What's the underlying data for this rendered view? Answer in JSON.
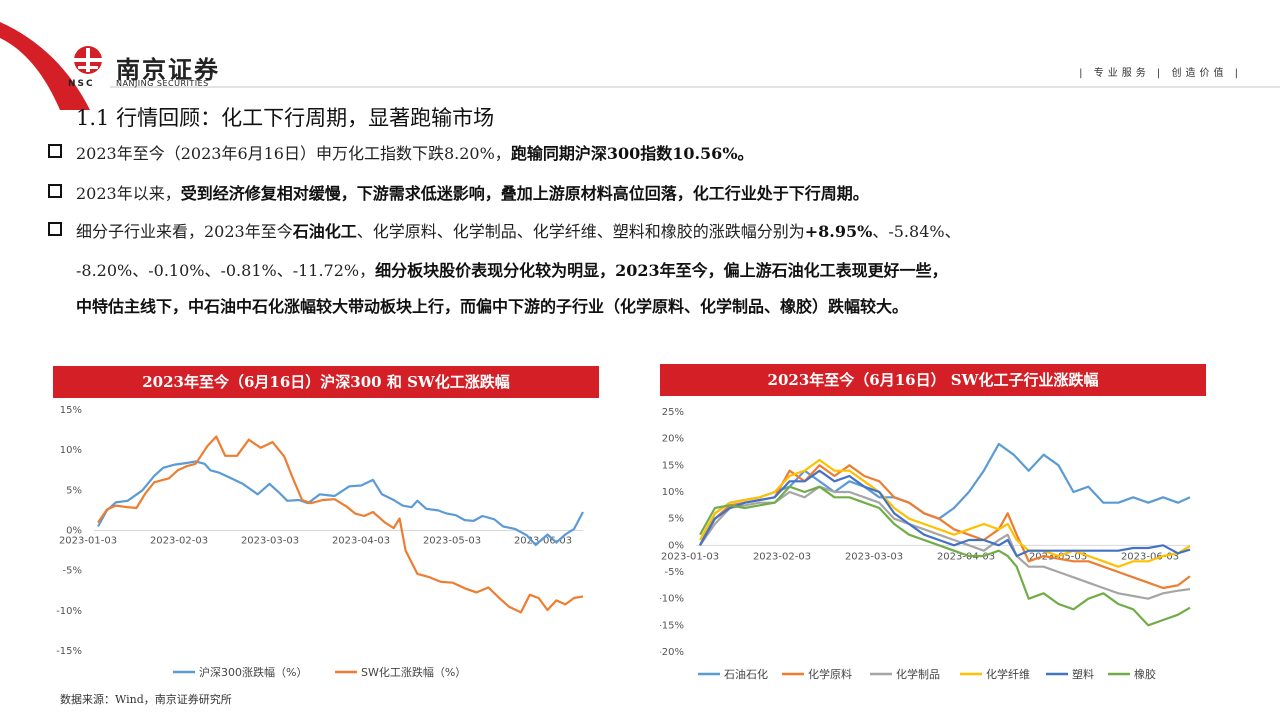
{
  "brand": {
    "name": "南京证券",
    "abbr": "NSC",
    "name_en": "NANJING SECURITIES"
  },
  "slogan": "| 专业服务 | 创造价值 |",
  "colors": {
    "accent": "#d41f26",
    "blue": "#5b9bd5",
    "orange": "#ed7d31",
    "gray": "#a5a5a5",
    "yellow": "#ffc000",
    "darkblue": "#4472c4",
    "green": "#70ad47"
  },
  "slide_title": "1.1 行情回顾：化工下行周期，显著跑输市场",
  "bullets": {
    "b1": {
      "p1": "2023年至今（2023年6月16日）申万化工指数下跌8.20%，",
      "p2": "跑输同期沪深300指数10.56%。"
    },
    "b2": {
      "p1": "2023年以来，",
      "p2": "受到经济修复相对缓慢，下游需求低迷影响，叠加上游原材料高位回落，化工行业处于下行周期。"
    },
    "b3": {
      "p1": "细分子行业来看，2023年至今",
      "p2": "石油化工",
      "p3": "、化学原料、化学制品、化学纤维、塑料和橡胶的涨跌幅分别为",
      "p4": "+8.95%",
      "p5": "、-5.84%、",
      "l2a": "-8.20%、-0.10%、-0.81%、-11.72%，",
      "l2b": "细分板块股价表现分化较为明显，2023年至今，偏上游石油化工表现更好一些，",
      "l3": "中特估主线下，中石油中石化涨幅较大带动板块上行，而偏中下游的子行业（化学原料、化学制品、橡胶）跌幅较大。"
    }
  },
  "source": "数据来源：Wind，南京证券研究所",
  "chart_data": [
    {
      "type": "line",
      "title": "2023年至今（6月16日）沪深300 和 SW化工涨跌幅",
      "x_ticks": [
        "2023-01-03",
        "2023-02-03",
        "2023-03-03",
        "2023-04-03",
        "2023-05-03",
        "2023-06-03"
      ],
      "y_ticks": [
        "15%",
        "10%",
        "5%",
        "0%",
        "-5%",
        "-10%",
        "-15%"
      ],
      "ylim": [
        -15,
        15
      ],
      "x_range": [
        0,
        164
      ],
      "series": [
        {
          "name": "沪深300涨跌幅（%）",
          "color": "#5b9bd5",
          "x": [
            0,
            3,
            6,
            10,
            15,
            19,
            22,
            26,
            30,
            33,
            36,
            38,
            41,
            45,
            49,
            54,
            58,
            61,
            64,
            68,
            71,
            75,
            80,
            85,
            89,
            93,
            96,
            100,
            103,
            106,
            108,
            111,
            115,
            118,
            121,
            124,
            127,
            130,
            134,
            137,
            141,
            145,
            148,
            152,
            155,
            158,
            161,
            164
          ],
          "y": [
            0.5,
            2.5,
            3.5,
            3.7,
            5,
            6.8,
            7.8,
            8.2,
            8.4,
            8.6,
            8.3,
            7.5,
            7.2,
            6.5,
            5.8,
            4.5,
            5.8,
            4.8,
            3.7,
            3.8,
            3.4,
            4.5,
            4.3,
            5.5,
            5.6,
            6.3,
            4.5,
            3.8,
            3.1,
            2.9,
            3.7,
            2.7,
            2.5,
            2.1,
            1.9,
            1.3,
            1.2,
            1.8,
            1.4,
            0.5,
            0.2,
            -0.6,
            -1.8,
            -0.5,
            -1.5,
            -0.5,
            0.2,
            2.3
          ]
        },
        {
          "name": "SW化工涨跌幅（%）",
          "color": "#ed7d31",
          "x": [
            0,
            3,
            6,
            10,
            13,
            16,
            19,
            24,
            27,
            30,
            33,
            37,
            40,
            43,
            47,
            51,
            55,
            59,
            63,
            66,
            69,
            72,
            76,
            80,
            84,
            87,
            90,
            93,
            97,
            100,
            102,
            104,
            108,
            112,
            116,
            120,
            124,
            128,
            132,
            136,
            139,
            143,
            146,
            149,
            152,
            155,
            158,
            161,
            164
          ],
          "y": [
            1,
            2.6,
            3.1,
            2.9,
            2.8,
            4.6,
            6,
            6.5,
            7.5,
            8,
            8.3,
            10.5,
            11.7,
            9.3,
            9.3,
            11.3,
            10.3,
            11,
            9.2,
            6.4,
            3.8,
            3.4,
            3.8,
            3.9,
            3,
            2.1,
            1.8,
            2.3,
            1,
            0.3,
            1.5,
            -2.5,
            -5.4,
            -5.8,
            -6.4,
            -6.5,
            -7.2,
            -7.7,
            -7.1,
            -8.5,
            -9.5,
            -10.2,
            -8,
            -8.4,
            -9.9,
            -8.7,
            -9.2,
            -8.4,
            -8.2
          ]
        }
      ]
    },
    {
      "type": "line",
      "title": "2023年至今（6月16日） SW化工子行业涨跌幅",
      "x_ticks": [
        "2023-01-03",
        "2023-02-03",
        "2023-03-03",
        "2023-04-03",
        "2023-05-03",
        "2023-06-03"
      ],
      "y_ticks": [
        "25%",
        "20%",
        "15%",
        "10%",
        "5%",
        "0%",
        "-5%",
        "-10%",
        "-15%",
        "-20%"
      ],
      "ylim": [
        -20,
        25
      ],
      "x_range": [
        0,
        164
      ],
      "series": [
        {
          "name": "石油石化",
          "color": "#5b9bd5",
          "x": [
            0,
            5,
            10,
            15,
            20,
            25,
            30,
            35,
            40,
            45,
            50,
            55,
            60,
            65,
            70,
            75,
            80,
            85,
            90,
            95,
            100,
            105,
            110,
            115,
            120,
            125,
            130,
            135,
            140,
            145,
            150,
            155,
            160,
            164
          ],
          "y": [
            0,
            6,
            8,
            8.5,
            9,
            10,
            11,
            14,
            12,
            10,
            12,
            11,
            9,
            9,
            8,
            6,
            5,
            7,
            10,
            14,
            19,
            17,
            14,
            17,
            15,
            10,
            11,
            8,
            8,
            9,
            8,
            9,
            8,
            9
          ]
        },
        {
          "name": "化学原料",
          "color": "#ed7d31",
          "x": [
            0,
            5,
            10,
            15,
            20,
            25,
            30,
            35,
            40,
            45,
            50,
            55,
            60,
            65,
            70,
            75,
            80,
            85,
            90,
            95,
            100,
            103,
            106,
            110,
            115,
            120,
            125,
            130,
            135,
            140,
            145,
            150,
            155,
            160,
            164
          ],
          "y": [
            0,
            5,
            7.5,
            8,
            8.5,
            9,
            14,
            12,
            15,
            13,
            15,
            13,
            12,
            9,
            8,
            6,
            5,
            3,
            2,
            1,
            3,
            6,
            2,
            -3,
            -2,
            -2.5,
            -3,
            -3,
            -4,
            -5,
            -6,
            -7,
            -8,
            -7.5,
            -5.8
          ]
        },
        {
          "name": "化学制品",
          "color": "#a5a5a5",
          "x": [
            0,
            5,
            10,
            15,
            20,
            25,
            30,
            35,
            40,
            45,
            50,
            55,
            60,
            65,
            70,
            75,
            80,
            85,
            90,
            95,
            100,
            103,
            106,
            110,
            115,
            120,
            125,
            130,
            135,
            140,
            145,
            150,
            155,
            160,
            164
          ],
          "y": [
            0,
            4,
            7,
            7.5,
            8,
            8,
            10,
            9,
            11,
            10,
            10,
            9,
            8,
            5,
            4,
            3,
            2,
            1,
            0,
            -1,
            1,
            2,
            -2,
            -4,
            -4,
            -5,
            -6,
            -7,
            -8,
            -9,
            -9.5,
            -10,
            -9,
            -8.5,
            -8.2
          ]
        },
        {
          "name": "化学纤维",
          "color": "#ffc000",
          "x": [
            0,
            5,
            10,
            15,
            20,
            25,
            30,
            35,
            40,
            45,
            50,
            55,
            60,
            65,
            70,
            75,
            80,
            85,
            90,
            95,
            100,
            103,
            106,
            110,
            115,
            120,
            125,
            130,
            135,
            140,
            145,
            150,
            155,
            160,
            164
          ],
          "y": [
            1,
            6,
            8,
            8.5,
            9,
            10,
            13,
            14,
            16,
            14,
            14,
            12,
            10,
            7,
            5,
            4,
            3,
            2,
            3,
            4,
            3,
            4,
            1,
            -1,
            -1,
            -2,
            -1,
            -2,
            -3,
            -4,
            -3,
            -3,
            -2,
            -1.5,
            -0.1
          ]
        },
        {
          "name": "塑料",
          "color": "#4472c4",
          "x": [
            0,
            5,
            10,
            15,
            20,
            25,
            30,
            35,
            40,
            45,
            50,
            55,
            60,
            65,
            70,
            75,
            80,
            85,
            90,
            95,
            100,
            103,
            106,
            110,
            115,
            120,
            125,
            130,
            135,
            140,
            145,
            150,
            155,
            160,
            164
          ],
          "y": [
            0,
            5,
            7,
            8,
            8.5,
            9,
            12,
            12,
            14,
            12,
            13,
            11,
            10,
            6,
            4,
            2,
            1,
            0,
            1,
            1,
            0,
            1,
            -2,
            -1,
            -1,
            -1,
            -1,
            -1,
            -1,
            -1,
            -0.5,
            -0.5,
            0,
            -1.5,
            -0.8
          ]
        },
        {
          "name": "橡胶",
          "color": "#70ad47",
          "x": [
            0,
            5,
            10,
            15,
            20,
            25,
            30,
            35,
            40,
            45,
            50,
            55,
            60,
            65,
            70,
            75,
            80,
            85,
            90,
            95,
            100,
            103,
            106,
            110,
            115,
            120,
            125,
            130,
            135,
            140,
            145,
            150,
            155,
            160,
            164
          ],
          "y": [
            2,
            7,
            7.5,
            7,
            7.5,
            8,
            11,
            10,
            11,
            9,
            9,
            8,
            7,
            4,
            2,
            1,
            0,
            -1,
            -2,
            -2,
            -1,
            -2,
            -4,
            -10,
            -9,
            -11,
            -12,
            -10,
            -9,
            -11,
            -12,
            -15,
            -14,
            -13,
            -11.7
          ]
        }
      ]
    }
  ]
}
